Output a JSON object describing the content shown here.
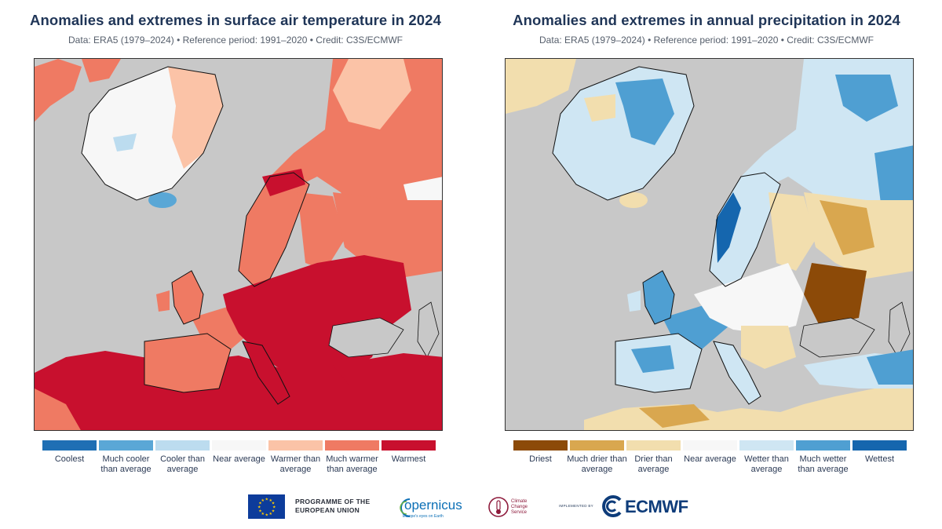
{
  "temperature_panel": {
    "title": "Anomalies and extremes in surface air temperature in 2024",
    "subtitle": "Data: ERA5 (1979–2024) • Reference period: 1991–2020 • Credit: C3S/ECMWF",
    "legend": [
      {
        "label": "Coolest",
        "color": "#1f6fb4"
      },
      {
        "label": "Much cooler than average",
        "color": "#5aa7d6"
      },
      {
        "label": "Cooler than average",
        "color": "#bcdcef"
      },
      {
        "label": "Near average",
        "color": "#f7f7f7"
      },
      {
        "label": "Warmer than average",
        "color": "#fbc3a7"
      },
      {
        "label": "Much warmer than average",
        "color": "#ef7a63"
      },
      {
        "label": "Warmest",
        "color": "#c8102e"
      }
    ]
  },
  "precipitation_panel": {
    "title": "Anomalies and extremes in annual precipitation in 2024",
    "subtitle": "Data: ERA5 (1979–2024) • Reference period: 1991–2020 • Credit: C3S/ECMWF",
    "legend": [
      {
        "label": "Driest",
        "color": "#8c4a08"
      },
      {
        "label": "Much drier than average",
        "color": "#d9a74f"
      },
      {
        "label": "Drier than average",
        "color": "#f2deae"
      },
      {
        "label": "Near average",
        "color": "#f7f7f7"
      },
      {
        "label": "Wetter than average",
        "color": "#cfe6f3"
      },
      {
        "label": "Much wetter than average",
        "color": "#4f9fd2"
      },
      {
        "label": "Wettest",
        "color": "#1566ae"
      }
    ]
  },
  "map_colors": {
    "no_data": "#c8c8c8",
    "coastline": "#111111"
  },
  "footer": {
    "eu_programme": "PROGRAMME OF THE EUROPEAN UNION",
    "copernicus": "opernicus",
    "copernicus_sub": "Europe's eyes on Earth",
    "c3s": "Climate Change Service",
    "implemented_by": "IMPLEMENTED BY",
    "ecmwf": "ECMWF"
  }
}
